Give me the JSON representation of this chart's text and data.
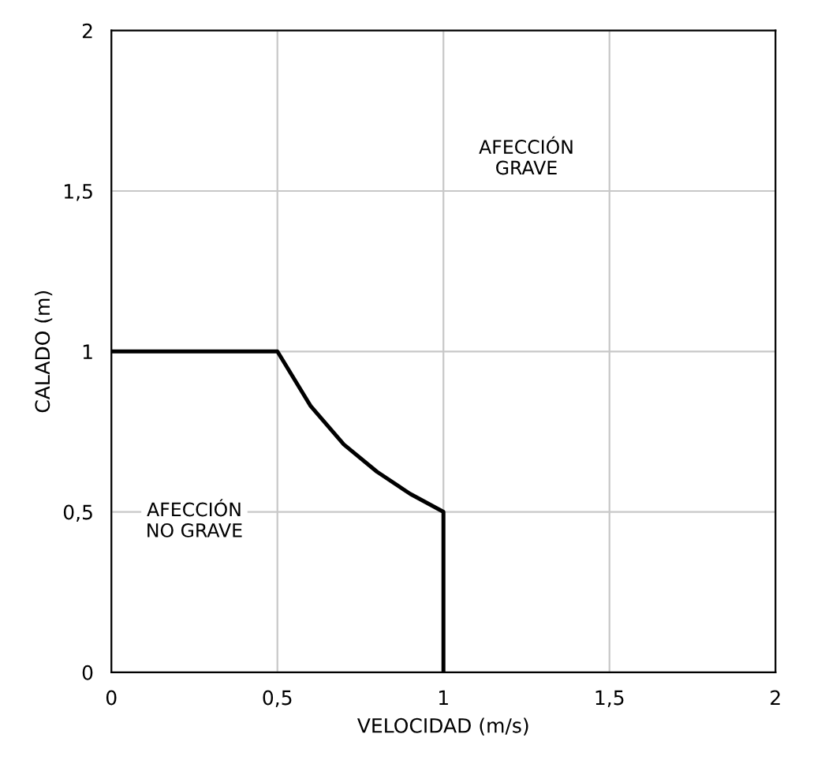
{
  "chart_data": {
    "type": "line",
    "xlabel": "VELOCIDAD (m/s)",
    "ylabel": "CALADO (m)",
    "x": [
      0,
      0.5,
      0.6,
      0.7,
      0.8,
      0.9,
      1,
      1
    ],
    "series": [
      {
        "color": "#000000",
        "values": [
          1,
          1,
          0.83,
          0.71,
          0.625,
          0.556,
          0.5,
          0
        ]
      }
    ],
    "xlim": [
      0,
      2
    ],
    "ylim": [
      0,
      2
    ],
    "xticks": [
      0,
      {
        "value": 0.5,
        "label": "0,5"
      },
      1,
      {
        "value": 1.5,
        "label": "1,5"
      },
      2
    ],
    "yticks": [
      0,
      {
        "value": 0.5,
        "label": "0,5"
      },
      1,
      {
        "value": 1.5,
        "label": "1,5"
      },
      2
    ],
    "grid": true,
    "marker": "none",
    "line_style": "solid",
    "annotations": [
      "AFECCIÓN\nGRAVE",
      "AFECCIÓN\nNO GRAVE"
    ]
  }
}
